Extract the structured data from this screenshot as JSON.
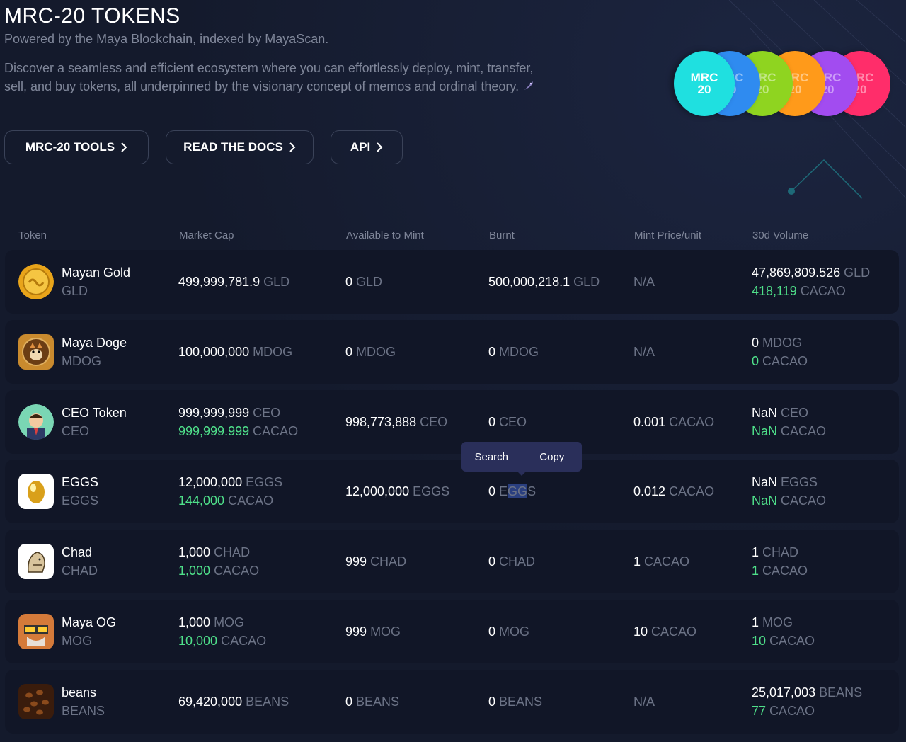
{
  "header": {
    "title": "MRC-20 TOKENS",
    "subtitle": "Powered by the Maya Blockchain, indexed by MayaScan.",
    "intro": "Discover a seamless and efficient ecosystem where you can effortlessly deploy, mint, transfer, sell, and buy tokens, all underpinned by the visionary concept of memos and ordinal theory."
  },
  "buttons": {
    "tools": "MRC-20 TOOLS",
    "docs": "READ THE DOCS",
    "api": "API"
  },
  "coins": {
    "line1": "MRC",
    "line2": "20",
    "colors": [
      "#ff2d6a",
      "#a24cf0",
      "#ff9a1a",
      "#8fd420",
      "#2f8bf0",
      "#1fe0e0"
    ]
  },
  "table": {
    "headers": [
      "Token",
      "Market Cap",
      "Available to Mint",
      "Burnt",
      "Mint Price/unit",
      "30d Volume"
    ],
    "rows": [
      {
        "name": "Mayan Gold",
        "symbol": "GLD",
        "cap": "499,999,781.9",
        "cap_unit": "GLD",
        "cap2": "",
        "cap2_unit": "",
        "avail": "0",
        "avail_unit": "GLD",
        "burnt": "500,000,218.1",
        "burnt_unit": "GLD",
        "price": "N/A",
        "price_unit": "",
        "vol": "47,869,809.526",
        "vol_unit": "GLD",
        "vol2": "418,119",
        "vol2_unit": "CACAO"
      },
      {
        "name": "Maya Doge",
        "symbol": "MDOG",
        "cap": "100,000,000",
        "cap_unit": "MDOG",
        "cap2": "",
        "cap2_unit": "",
        "avail": "0",
        "avail_unit": "MDOG",
        "burnt": "0",
        "burnt_unit": "MDOG",
        "price": "N/A",
        "price_unit": "",
        "vol": "0",
        "vol_unit": "MDOG",
        "vol2": "0",
        "vol2_unit": "CACAO"
      },
      {
        "name": "CEO Token",
        "symbol": "CEO",
        "cap": "999,999,999",
        "cap_unit": "CEO",
        "cap2": "999,999.999",
        "cap2_unit": "CACAO",
        "avail": "998,773,888",
        "avail_unit": "CEO",
        "burnt": "0",
        "burnt_unit": "CEO",
        "price": "0.001",
        "price_unit": "CACAO",
        "vol": "NaN",
        "vol_unit": "CEO",
        "vol2": "NaN",
        "vol2_unit": "CACAO"
      },
      {
        "name": "EGGS",
        "symbol": "EGGS",
        "cap": "12,000,000",
        "cap_unit": "EGGS",
        "cap2": "144,000",
        "cap2_unit": "CACAO",
        "avail": "12,000,000",
        "avail_unit": "EGGS",
        "burnt": "0",
        "burnt_unit": "EGGS",
        "price": "0.012",
        "price_unit": "CACAO",
        "vol": "NaN",
        "vol_unit": "EGGS",
        "vol2": "NaN",
        "vol2_unit": "CACAO"
      },
      {
        "name": "Chad",
        "symbol": "CHAD",
        "cap": "1,000",
        "cap_unit": "CHAD",
        "cap2": "1,000",
        "cap2_unit": "CACAO",
        "avail": "999",
        "avail_unit": "CHAD",
        "burnt": "0",
        "burnt_unit": "CHAD",
        "price": "1",
        "price_unit": "CACAO",
        "vol": "1",
        "vol_unit": "CHAD",
        "vol2": "1",
        "vol2_unit": "CACAO"
      },
      {
        "name": "Maya OG",
        "symbol": "MOG",
        "cap": "1,000",
        "cap_unit": "MOG",
        "cap2": "10,000",
        "cap2_unit": "CACAO",
        "avail": "999",
        "avail_unit": "MOG",
        "burnt": "0",
        "burnt_unit": "MOG",
        "price": "10",
        "price_unit": "CACAO",
        "vol": "1",
        "vol_unit": "MOG",
        "vol2": "10",
        "vol2_unit": "CACAO"
      },
      {
        "name": "beans",
        "symbol": "BEANS",
        "cap": "69,420,000",
        "cap_unit": "BEANS",
        "cap2": "",
        "cap2_unit": "",
        "avail": "0",
        "avail_unit": "BEANS",
        "burnt": "0",
        "burnt_unit": "BEANS",
        "price": "N/A",
        "price_unit": "",
        "vol": "25,017,003",
        "vol_unit": "BEANS",
        "vol2": "77",
        "vol2_unit": "CACAO"
      }
    ]
  },
  "context_menu": {
    "search": "Search",
    "copy": "Copy"
  }
}
